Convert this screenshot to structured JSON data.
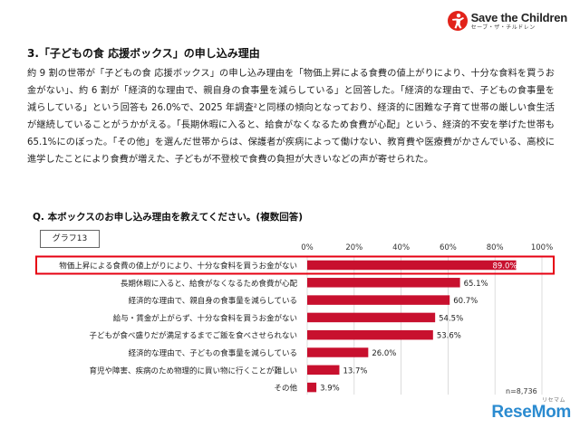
{
  "logo": {
    "name": "Save the Children",
    "sub": "セーブ・ザ・チルドレン"
  },
  "section_title": "3.「子どもの食 応援ボックス」の申し込み理由",
  "paragraph": "約 9 割の世帯が「子どもの食 応援ボックス」の申し込み理由を「物価上昇による食費の値上がりにより、十分な食料を買うお金がない」、約 6 割が「経済的な理由で、親自身の食事量を減らしている」と回答した。「経済的な理由で、子どもの食事量を減らしている」という回答も 26.0%で、2025 年調査²と同様の傾向となっており、経済的に困難な子育て世帯の厳しい食生活が継続していることがうかがえる。「長期休暇に入ると、給食がなくなるため食費が心配」という、経済的不安を挙げた世帯も 65.1%にのぼった。「その他」を選んだ世帯からは、保護者が疾病によって働けない、教育費や医療費がかさんでいる、高校に進学したことにより食費が増えた、子どもが不登校で食費の負担が大きいなどの声が寄せられた。",
  "question": "Q. 本ボックスのお申し込み理由を教えてください。(複数回答)",
  "graph_label": "グラフ13",
  "footnote": "n=8,736",
  "watermark": {
    "small": "リセマム",
    "main": "ReseMom"
  },
  "colors": {
    "bar": "#c8102e",
    "highlight_border": "#e60012",
    "logo_red": "#e2231a",
    "watermark": "#2b8bd0"
  },
  "chart_data": {
    "type": "bar",
    "orientation": "horizontal",
    "x_ticks": [
      "0%",
      "20%",
      "40%",
      "60%",
      "80%",
      "100%"
    ],
    "xlim": [
      0,
      100
    ],
    "grid": true,
    "highlighted_category_index": 0,
    "categories": [
      "物価上昇による食費の値上がりにより、十分な食料を買うお金がない",
      "長期休暇に入ると、給食がなくなるため食費が心配",
      "経済的な理由で、親自身の食事量を減らしている",
      "給与・賃金が上がらず、十分な食料を買うお金がない",
      "子どもが食べ盛りだが満足するまでご飯を食べさせられない",
      "経済的な理由で、子どもの食事量を減らしている",
      "育児や障害、疾病のため物理的に買い物に行くことが難しい",
      "その他"
    ],
    "values": [
      89.0,
      65.1,
      60.7,
      54.5,
      53.6,
      26.0,
      13.7,
      3.9
    ],
    "value_labels": [
      "89.0%",
      "65.1%",
      "60.7%",
      "54.5%",
      "53.6%",
      "26.0%",
      "13.7%",
      "3.9%"
    ]
  }
}
